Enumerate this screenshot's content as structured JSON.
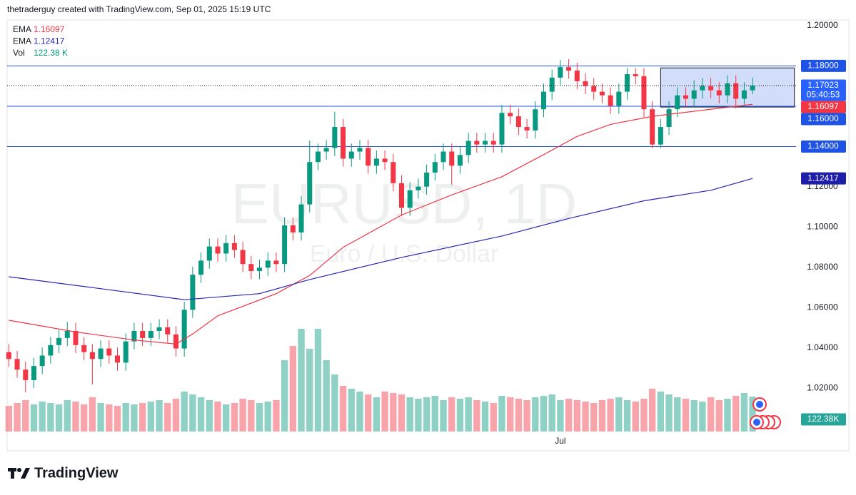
{
  "header": "thetraderguy created with TradingView.com, Sep 01, 2025 15:19 UTC",
  "brand": "TradingView",
  "chart_data": {
    "type": "candlestick",
    "symbol": "EURUSD, 1D",
    "description": "Euro / U.S. Dollar",
    "up_color": "#089981",
    "down_color": "#f23645",
    "xlim": [
      -0.2,
      94.2
    ],
    "xticks": [
      {
        "value": 66,
        "label": "Jul"
      }
    ],
    "ylim": [
      0.9986,
      1.2028
    ],
    "yticks": [
      {
        "value": 1.2,
        "label": "1.20000"
      },
      {
        "value": 1.12,
        "label": "1.12000"
      },
      {
        "value": 1.1,
        "label": "1.10000"
      },
      {
        "value": 1.08,
        "label": "1.08000"
      },
      {
        "value": 1.06,
        "label": "1.06000"
      },
      {
        "value": 1.04,
        "label": "1.04000"
      },
      {
        "value": 1.02,
        "label": "1.02000"
      }
    ],
    "open": [
      1.038,
      1.0346,
      1.0293,
      1.0241,
      1.0311,
      1.0363,
      1.0415,
      1.045,
      1.0485,
      1.0415,
      1.038,
      1.0346,
      1.0398,
      1.0363,
      1.0328,
      1.0433,
      1.0485,
      1.045,
      1.0485,
      1.0503,
      1.0468,
      1.0398,
      1.059,
      1.0764,
      1.0834,
      1.0904,
      1.0869,
      1.0921,
      1.0887,
      1.0817,
      1.0782,
      1.0799,
      1.0834,
      1.0817,
      1.1009,
      1.0974,
      1.1113,
      1.1323,
      1.1375,
      1.1393,
      1.1497,
      1.134,
      1.1375,
      1.1393,
      1.1305,
      1.134,
      1.1323,
      1.1218,
      1.1096,
      1.1183,
      1.1201,
      1.1271,
      1.1323,
      1.1375,
      1.1305,
      1.1358,
      1.1428,
      1.141,
      1.1428,
      1.141,
      1.1567,
      1.155,
      1.1497,
      1.148,
      1.1585,
      1.1672,
      1.1742,
      1.1794,
      1.1777,
      1.1724,
      1.17,
      1.1672,
      1.1654,
      1.1602,
      1.1672,
      1.1759,
      1.1749,
      1.1585,
      1.141,
      1.1497,
      1.1585,
      1.1654,
      1.1637,
      1.1679,
      1.17,
      1.1679,
      1.1654,
      1.1714,
      1.1637,
      1.1679
    ],
    "high": [
      1.042,
      1.0386,
      1.0333,
      1.0351,
      1.0403,
      1.0455,
      1.049,
      1.053,
      1.0525,
      1.0455,
      1.042,
      1.0438,
      1.0438,
      1.0403,
      1.0473,
      1.0525,
      1.0525,
      1.0525,
      1.0543,
      1.0543,
      1.0508,
      1.063,
      1.0804,
      1.0874,
      1.0944,
      1.0944,
      1.0961,
      1.0961,
      1.0927,
      1.0857,
      1.0839,
      1.0874,
      1.0874,
      1.1049,
      1.1049,
      1.1153,
      1.143,
      1.1415,
      1.1433,
      1.1573,
      1.1537,
      1.1415,
      1.1433,
      1.1433,
      1.138,
      1.138,
      1.1363,
      1.1258,
      1.1223,
      1.1241,
      1.1311,
      1.1363,
      1.1415,
      1.1415,
      1.1398,
      1.1468,
      1.1468,
      1.1468,
      1.1468,
      1.1607,
      1.1607,
      1.159,
      1.1537,
      1.1625,
      1.1712,
      1.1782,
      1.183,
      1.1834,
      1.1817,
      1.1764,
      1.174,
      1.1712,
      1.1694,
      1.1712,
      1.1789,
      1.1789,
      1.1789,
      1.1625,
      1.1537,
      1.1625,
      1.1694,
      1.1694,
      1.1729,
      1.174,
      1.174,
      1.1719,
      1.1754,
      1.1754,
      1.1719,
      1.1742
    ],
    "low": [
      1.0306,
      1.0253,
      1.018,
      1.0201,
      1.0271,
      1.0323,
      1.0375,
      1.041,
      1.0375,
      1.034,
      1.022,
      1.0306,
      1.0323,
      1.0288,
      1.0288,
      1.0393,
      1.041,
      1.041,
      1.0445,
      1.0428,
      1.0358,
      1.0358,
      1.055,
      1.0724,
      1.0794,
      1.0829,
      1.0829,
      1.0847,
      1.0777,
      1.0742,
      1.0742,
      1.0759,
      1.0777,
      1.0777,
      1.0934,
      1.0934,
      1.1073,
      1.1283,
      1.1335,
      1.1353,
      1.13,
      1.13,
      1.1335,
      1.1265,
      1.1265,
      1.1283,
      1.1178,
      1.1056,
      1.1056,
      1.1143,
      1.1161,
      1.1231,
      1.1283,
      1.121,
      1.1265,
      1.1318,
      1.137,
      1.137,
      1.137,
      1.137,
      1.151,
      1.1457,
      1.144,
      1.144,
      1.1545,
      1.1632,
      1.1702,
      1.1737,
      1.1684,
      1.166,
      1.1632,
      1.1614,
      1.1562,
      1.1562,
      1.1632,
      1.1709,
      1.1545,
      1.1392,
      1.1392,
      1.1457,
      1.1545,
      1.1597,
      1.1597,
      1.1639,
      1.1639,
      1.1614,
      1.1614,
      1.159,
      1.1597,
      1.166
    ],
    "close": [
      1.0346,
      1.0293,
      1.0241,
      1.0311,
      1.0363,
      1.0415,
      1.045,
      1.0485,
      1.0415,
      1.038,
      1.0346,
      1.0398,
      1.0363,
      1.0328,
      1.0433,
      1.0485,
      1.045,
      1.0485,
      1.0503,
      1.0468,
      1.0398,
      1.059,
      1.0764,
      1.0834,
      1.0904,
      1.0869,
      1.0921,
      1.0887,
      1.0817,
      1.0782,
      1.0799,
      1.0834,
      1.0817,
      1.1009,
      1.0974,
      1.1113,
      1.1323,
      1.1375,
      1.1393,
      1.1497,
      1.134,
      1.1375,
      1.1393,
      1.1305,
      1.134,
      1.1323,
      1.1218,
      1.1096,
      1.1183,
      1.1201,
      1.1271,
      1.1323,
      1.1375,
      1.1305,
      1.1358,
      1.1428,
      1.141,
      1.1428,
      1.141,
      1.1567,
      1.155,
      1.1497,
      1.148,
      1.1585,
      1.1672,
      1.1742,
      1.1794,
      1.1777,
      1.1724,
      1.17,
      1.1672,
      1.1654,
      1.1602,
      1.1672,
      1.1759,
      1.1749,
      1.1585,
      1.141,
      1.1497,
      1.1585,
      1.1654,
      1.1637,
      1.1679,
      1.17,
      1.1679,
      1.1654,
      1.1714,
      1.1637,
      1.1679,
      1.17023
    ],
    "volume_lim": [
      0,
      400
    ],
    "volume": [
      90,
      100,
      110,
      95,
      105,
      100,
      95,
      110,
      105,
      95,
      120,
      100,
      95,
      90,
      100,
      95,
      100,
      105,
      110,
      100,
      115,
      140,
      130,
      120,
      110,
      105,
      95,
      100,
      115,
      110,
      100,
      105,
      110,
      250,
      300,
      360,
      290,
      360,
      250,
      200,
      160,
      150,
      140,
      130,
      120,
      140,
      135,
      130,
      120,
      115,
      120,
      125,
      110,
      120,
      115,
      120,
      110,
      105,
      100,
      125,
      120,
      115,
      110,
      120,
      125,
      130,
      110,
      115,
      110,
      105,
      100,
      110,
      115,
      120,
      110,
      105,
      115,
      150,
      140,
      130,
      120,
      115,
      110,
      105,
      120,
      110,
      115,
      125,
      135,
      122.38
    ],
    "volume_legend_label": "122.38 K",
    "volume_axis_label": "122.38K",
    "series": [
      {
        "name": "EMA",
        "color": "#f23645",
        "x": [
          0,
          8,
          15,
          20,
          22,
          25,
          32,
          36,
          40,
          47,
          53,
          59,
          64,
          68,
          72,
          77,
          82,
          89
        ],
        "values": [
          1.0538,
          1.048,
          1.044,
          1.042,
          1.047,
          1.056,
          1.067,
          1.076,
          1.09,
          1.106,
          1.116,
          1.125,
          1.136,
          1.145,
          1.151,
          1.155,
          1.1575,
          1.16097
        ]
      },
      {
        "name": "EMA",
        "color": "#2727b8",
        "x": [
          0,
          10,
          21,
          30,
          36,
          47,
          59,
          67,
          76,
          84,
          89
        ],
        "values": [
          1.0754,
          1.07,
          1.064,
          1.067,
          1.074,
          1.085,
          1.0956,
          1.1043,
          1.1131,
          1.1183,
          1.12417
        ]
      }
    ],
    "volume_name": "Vol",
    "levels": [
      {
        "value": 1.18,
        "label": "1.18000"
      },
      {
        "value": 1.16,
        "label": "1.16000"
      },
      {
        "value": 1.14,
        "label": "1.14000"
      }
    ],
    "level_color": "#1e53e5",
    "countdown": "05:40:53",
    "box": {
      "x": [
        78,
        94
      ],
      "y": [
        1.1596,
        1.179
      ],
      "color": "#1e53e5"
    }
  }
}
